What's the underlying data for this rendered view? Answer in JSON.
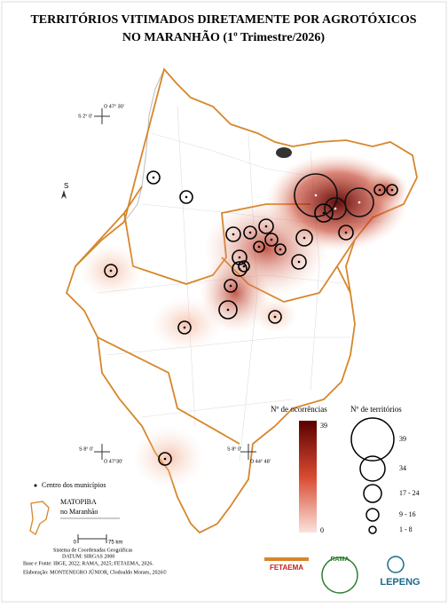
{
  "header": {
    "title_line1": "TERRITÓRIOS VITIMADOS DIRETAMENTE POR AGROTÓXICOS",
    "title_line2": "NO MARANHÃO (1º Trimestre/2026)"
  },
  "coordinates": {
    "top_lat": "S 2° 0'",
    "top_lon": "O 47° 30'",
    "north": "S",
    "bl_lat": "S 8° 0'",
    "bl_lon": "O 47°30'",
    "br_lat": "S 8° 0'",
    "br_lon": "O 44° 48'"
  },
  "legend": {
    "occurrences_title": "Nº de ocorrências",
    "territories_title": "Nº de territórios",
    "occ_max": "39",
    "occ_min": "0",
    "sizes": [
      "39",
      "34",
      "17 - 24",
      "9 - 16",
      "1 - 8"
    ],
    "centers": "Centro dos municípios",
    "matopiba1": "MATOPIBA",
    "matopiba2": "no Maranhão"
  },
  "scale": {
    "zero": "0",
    "km": "75 km"
  },
  "footer": {
    "line1": "Sistema de Coordenadas Geográficas",
    "line2": "DATUM: SIRGAS 2000",
    "line3": "Base e Fonte: IBGE, 2022; RAMA, 2025; FETAEMA, 2026.",
    "line4": "Elaboração: MONTENEGRO JÚNIOR, Clodoaldo Moraes, 2026©"
  },
  "logos": {
    "fetaema": "FETAEMA",
    "rama": "RAMA",
    "lepeng": "LEPENG"
  }
}
